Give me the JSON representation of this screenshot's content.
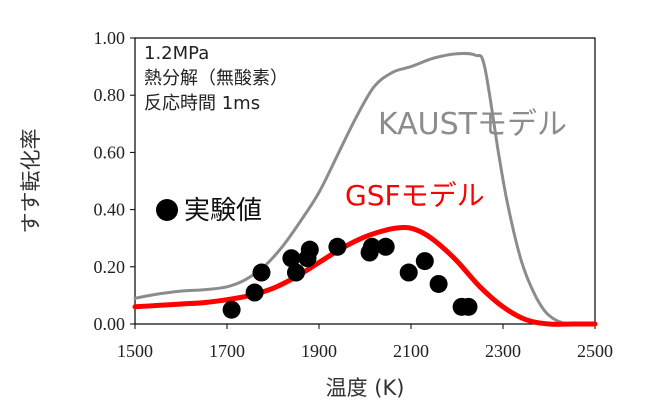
{
  "chart_data": {
    "type": "line",
    "xlabel": "温度 (K)",
    "ylabel": "すす転化率",
    "xlim": [
      1500,
      2500
    ],
    "ylim": [
      0,
      1
    ],
    "x_ticks": [
      1500,
      1700,
      1900,
      2100,
      2300,
      2500
    ],
    "y_ticks": [
      0,
      0.2,
      0.4,
      0.6,
      0.8,
      1.0
    ],
    "x_tick_labels": [
      "1500",
      "1700",
      "1900",
      "2100",
      "2300",
      "2500"
    ],
    "y_tick_labels": [
      "0.00",
      "0.20",
      "0.40",
      "0.60",
      "0.80",
      "1.00"
    ],
    "conditions": [
      "1.2MPa",
      "熱分解（無酸素）",
      "反応時間 1ms"
    ],
    "series": [
      {
        "name": "KAUSTモデル",
        "kind": "line",
        "color": "#8c8c8c",
        "x": [
          1500,
          1550,
          1600,
          1650,
          1700,
          1740,
          1780,
          1820,
          1860,
          1900,
          1940,
          1980,
          2020,
          2060,
          2100,
          2150,
          2200,
          2240,
          2260,
          2290,
          2310,
          2340,
          2370,
          2400,
          2440,
          2500
        ],
        "y": [
          0.09,
          0.105,
          0.115,
          0.12,
          0.13,
          0.155,
          0.2,
          0.27,
          0.36,
          0.46,
          0.59,
          0.72,
          0.83,
          0.88,
          0.9,
          0.93,
          0.945,
          0.94,
          0.9,
          0.6,
          0.42,
          0.22,
          0.1,
          0.03,
          0.0,
          0.0
        ]
      },
      {
        "name": "GSFモデル",
        "kind": "line",
        "color": "#ff0000",
        "x": [
          1500,
          1550,
          1600,
          1650,
          1700,
          1750,
          1800,
          1850,
          1900,
          1950,
          2000,
          2050,
          2080,
          2100,
          2130,
          2160,
          2200,
          2250,
          2300,
          2350,
          2400,
          2450,
          2500
        ],
        "y": [
          0.06,
          0.065,
          0.07,
          0.075,
          0.085,
          0.1,
          0.125,
          0.165,
          0.215,
          0.265,
          0.305,
          0.33,
          0.337,
          0.335,
          0.315,
          0.28,
          0.22,
          0.13,
          0.06,
          0.015,
          0.0,
          0.0,
          0.0
        ]
      },
      {
        "name": "実験値",
        "kind": "scatter",
        "color": "#000000",
        "x": [
          1710,
          1760,
          1775,
          1840,
          1850,
          1875,
          1880,
          1940,
          2010,
          2015,
          2045,
          2095,
          2130,
          2160,
          2210,
          2225
        ],
        "y": [
          0.05,
          0.11,
          0.18,
          0.23,
          0.18,
          0.23,
          0.26,
          0.27,
          0.25,
          0.27,
          0.27,
          0.18,
          0.22,
          0.14,
          0.06,
          0.06
        ]
      }
    ]
  }
}
